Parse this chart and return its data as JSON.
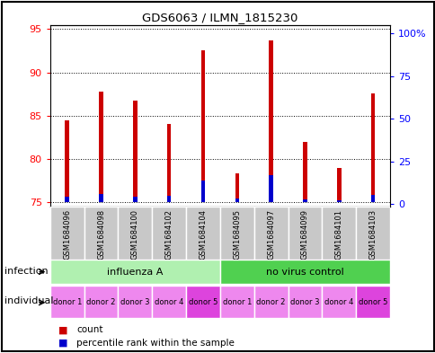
{
  "title": "GDS6063 / ILMN_1815230",
  "samples": [
    "GSM1684096",
    "GSM1684098",
    "GSM1684100",
    "GSM1684102",
    "GSM1684104",
    "GSM1684095",
    "GSM1684097",
    "GSM1684099",
    "GSM1684101",
    "GSM1684103"
  ],
  "red_values": [
    84.5,
    87.8,
    86.7,
    84.0,
    92.5,
    78.3,
    93.7,
    82.0,
    79.0,
    87.6
  ],
  "blue_values": [
    75.65,
    75.95,
    75.65,
    75.72,
    77.5,
    75.45,
    78.1,
    75.35,
    75.25,
    75.85
  ],
  "ylim_left": [
    74.5,
    95.5
  ],
  "ylim_right": [
    -1.5,
    105
  ],
  "yticks_left": [
    75,
    80,
    85,
    90,
    95
  ],
  "yticks_right": [
    0,
    25,
    50,
    75,
    100
  ],
  "ytick_labels_right": [
    "0",
    "25",
    "50",
    "75",
    "100%"
  ],
  "infection_color_light": "#b0f0b0",
  "infection_color_dark": "#50d050",
  "sample_bg_color": "#c8c8c8",
  "bar_width": 0.12,
  "blue_bar_width": 0.12,
  "red_color": "#cc0000",
  "blue_color": "#0000cc",
  "legend_red": "count",
  "legend_blue": "percentile rank within the sample",
  "individual_labels": [
    "donor 1",
    "donor 2",
    "donor 3",
    "donor 4",
    "donor 5",
    "donor 1",
    "donor 2",
    "donor 3",
    "donor 4",
    "donor 5"
  ],
  "individual_color_normal": "#ee88ee",
  "individual_color_d5": "#dd44dd",
  "grid_color": "#888888",
  "base": 75
}
